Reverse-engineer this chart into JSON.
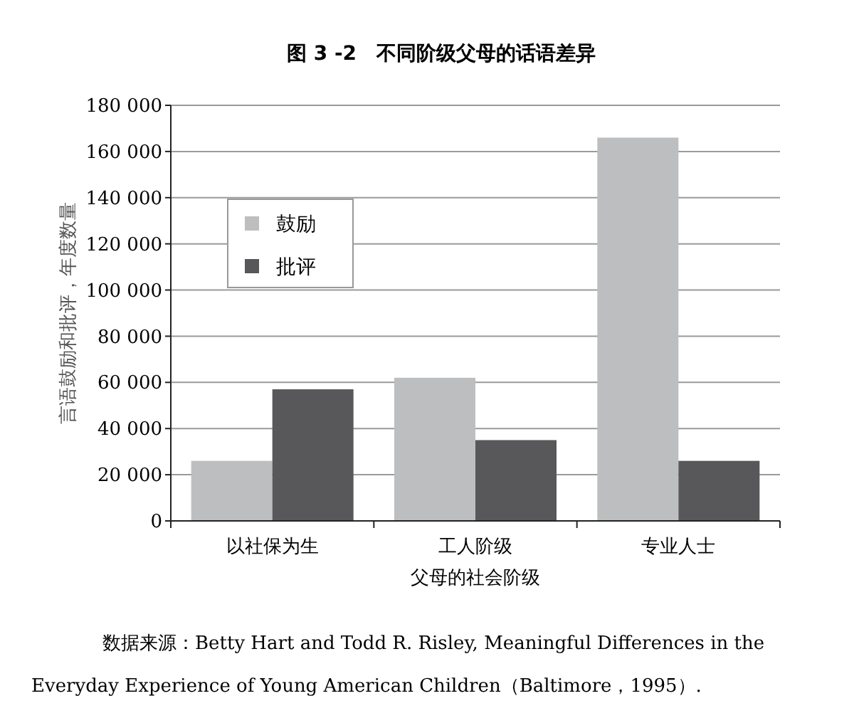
{
  "chart_data": {
    "type": "bar",
    "title": "图 3 -2　不同阶级父母的话语差异",
    "xlabel": "父母的社会阶级",
    "ylabel": "言语鼓励和批评，年度数量",
    "categories": [
      "以社保为生",
      "工人阶级",
      "专业人士"
    ],
    "series": [
      {
        "name": "鼓励",
        "color": "#bdbec0",
        "values": [
          26000,
          62000,
          166000
        ]
      },
      {
        "name": "批评",
        "color": "#58585a",
        "values": [
          57000,
          35000,
          26000
        ]
      }
    ],
    "ylim": [
      0,
      180000
    ],
    "yticks": [
      {
        "value": 0,
        "label": "0"
      },
      {
        "value": 20000,
        "label": "20 000"
      },
      {
        "value": 40000,
        "label": "40 000"
      },
      {
        "value": 60000,
        "label": "60 000"
      },
      {
        "value": 80000,
        "label": "80 000"
      },
      {
        "value": 100000,
        "label": "100 000"
      },
      {
        "value": 120000,
        "label": "120 000"
      },
      {
        "value": 140000,
        "label": "140 000"
      },
      {
        "value": 160000,
        "label": "160 000"
      },
      {
        "value": 180000,
        "label": "180 000"
      }
    ],
    "grid": "y",
    "legend": "top left",
    "annotations": [
      "数据来源：Betty Hart and Todd R. Risley, Meaningful Differences in the Everyday Experience of Young American Children（Baltimore，1995）."
    ]
  }
}
